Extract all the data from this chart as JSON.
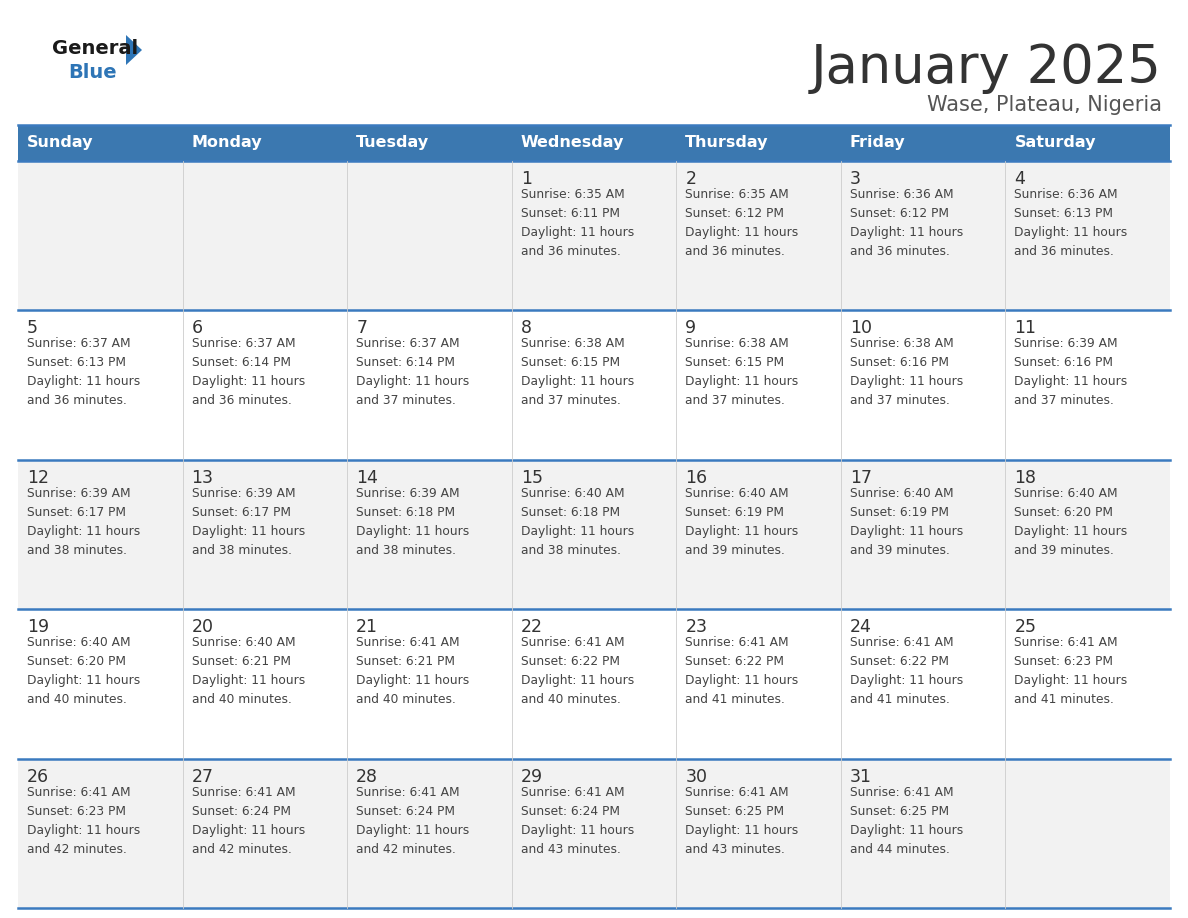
{
  "title": "January 2025",
  "subtitle": "Wase, Plateau, Nigeria",
  "header_bg_color": "#3B78B0",
  "header_text_color": "#FFFFFF",
  "weekdays": [
    "Sunday",
    "Monday",
    "Tuesday",
    "Wednesday",
    "Thursday",
    "Friday",
    "Saturday"
  ],
  "cell_bg_color": "#F2F2F2",
  "day_number_color": "#333333",
  "cell_text_color": "#444444",
  "border_color": "#3B7ABF",
  "title_color": "#333333",
  "subtitle_color": "#555555",
  "logo_general_color": "#1A1A1A",
  "logo_blue_color": "#2E75B6",
  "calendar_data": [
    [
      {
        "day": null,
        "info": null
      },
      {
        "day": null,
        "info": null
      },
      {
        "day": null,
        "info": null
      },
      {
        "day": 1,
        "info": "Sunrise: 6:35 AM\nSunset: 6:11 PM\nDaylight: 11 hours\nand 36 minutes."
      },
      {
        "day": 2,
        "info": "Sunrise: 6:35 AM\nSunset: 6:12 PM\nDaylight: 11 hours\nand 36 minutes."
      },
      {
        "day": 3,
        "info": "Sunrise: 6:36 AM\nSunset: 6:12 PM\nDaylight: 11 hours\nand 36 minutes."
      },
      {
        "day": 4,
        "info": "Sunrise: 6:36 AM\nSunset: 6:13 PM\nDaylight: 11 hours\nand 36 minutes."
      }
    ],
    [
      {
        "day": 5,
        "info": "Sunrise: 6:37 AM\nSunset: 6:13 PM\nDaylight: 11 hours\nand 36 minutes."
      },
      {
        "day": 6,
        "info": "Sunrise: 6:37 AM\nSunset: 6:14 PM\nDaylight: 11 hours\nand 36 minutes."
      },
      {
        "day": 7,
        "info": "Sunrise: 6:37 AM\nSunset: 6:14 PM\nDaylight: 11 hours\nand 37 minutes."
      },
      {
        "day": 8,
        "info": "Sunrise: 6:38 AM\nSunset: 6:15 PM\nDaylight: 11 hours\nand 37 minutes."
      },
      {
        "day": 9,
        "info": "Sunrise: 6:38 AM\nSunset: 6:15 PM\nDaylight: 11 hours\nand 37 minutes."
      },
      {
        "day": 10,
        "info": "Sunrise: 6:38 AM\nSunset: 6:16 PM\nDaylight: 11 hours\nand 37 minutes."
      },
      {
        "day": 11,
        "info": "Sunrise: 6:39 AM\nSunset: 6:16 PM\nDaylight: 11 hours\nand 37 minutes."
      }
    ],
    [
      {
        "day": 12,
        "info": "Sunrise: 6:39 AM\nSunset: 6:17 PM\nDaylight: 11 hours\nand 38 minutes."
      },
      {
        "day": 13,
        "info": "Sunrise: 6:39 AM\nSunset: 6:17 PM\nDaylight: 11 hours\nand 38 minutes."
      },
      {
        "day": 14,
        "info": "Sunrise: 6:39 AM\nSunset: 6:18 PM\nDaylight: 11 hours\nand 38 minutes."
      },
      {
        "day": 15,
        "info": "Sunrise: 6:40 AM\nSunset: 6:18 PM\nDaylight: 11 hours\nand 38 minutes."
      },
      {
        "day": 16,
        "info": "Sunrise: 6:40 AM\nSunset: 6:19 PM\nDaylight: 11 hours\nand 39 minutes."
      },
      {
        "day": 17,
        "info": "Sunrise: 6:40 AM\nSunset: 6:19 PM\nDaylight: 11 hours\nand 39 minutes."
      },
      {
        "day": 18,
        "info": "Sunrise: 6:40 AM\nSunset: 6:20 PM\nDaylight: 11 hours\nand 39 minutes."
      }
    ],
    [
      {
        "day": 19,
        "info": "Sunrise: 6:40 AM\nSunset: 6:20 PM\nDaylight: 11 hours\nand 40 minutes."
      },
      {
        "day": 20,
        "info": "Sunrise: 6:40 AM\nSunset: 6:21 PM\nDaylight: 11 hours\nand 40 minutes."
      },
      {
        "day": 21,
        "info": "Sunrise: 6:41 AM\nSunset: 6:21 PM\nDaylight: 11 hours\nand 40 minutes."
      },
      {
        "day": 22,
        "info": "Sunrise: 6:41 AM\nSunset: 6:22 PM\nDaylight: 11 hours\nand 40 minutes."
      },
      {
        "day": 23,
        "info": "Sunrise: 6:41 AM\nSunset: 6:22 PM\nDaylight: 11 hours\nand 41 minutes."
      },
      {
        "day": 24,
        "info": "Sunrise: 6:41 AM\nSunset: 6:22 PM\nDaylight: 11 hours\nand 41 minutes."
      },
      {
        "day": 25,
        "info": "Sunrise: 6:41 AM\nSunset: 6:23 PM\nDaylight: 11 hours\nand 41 minutes."
      }
    ],
    [
      {
        "day": 26,
        "info": "Sunrise: 6:41 AM\nSunset: 6:23 PM\nDaylight: 11 hours\nand 42 minutes."
      },
      {
        "day": 27,
        "info": "Sunrise: 6:41 AM\nSunset: 6:24 PM\nDaylight: 11 hours\nand 42 minutes."
      },
      {
        "day": 28,
        "info": "Sunrise: 6:41 AM\nSunset: 6:24 PM\nDaylight: 11 hours\nand 42 minutes."
      },
      {
        "day": 29,
        "info": "Sunrise: 6:41 AM\nSunset: 6:24 PM\nDaylight: 11 hours\nand 43 minutes."
      },
      {
        "day": 30,
        "info": "Sunrise: 6:41 AM\nSunset: 6:25 PM\nDaylight: 11 hours\nand 43 minutes."
      },
      {
        "day": 31,
        "info": "Sunrise: 6:41 AM\nSunset: 6:25 PM\nDaylight: 11 hours\nand 44 minutes."
      },
      {
        "day": null,
        "info": null
      }
    ]
  ],
  "figsize": [
    11.88,
    9.18
  ],
  "dpi": 100
}
